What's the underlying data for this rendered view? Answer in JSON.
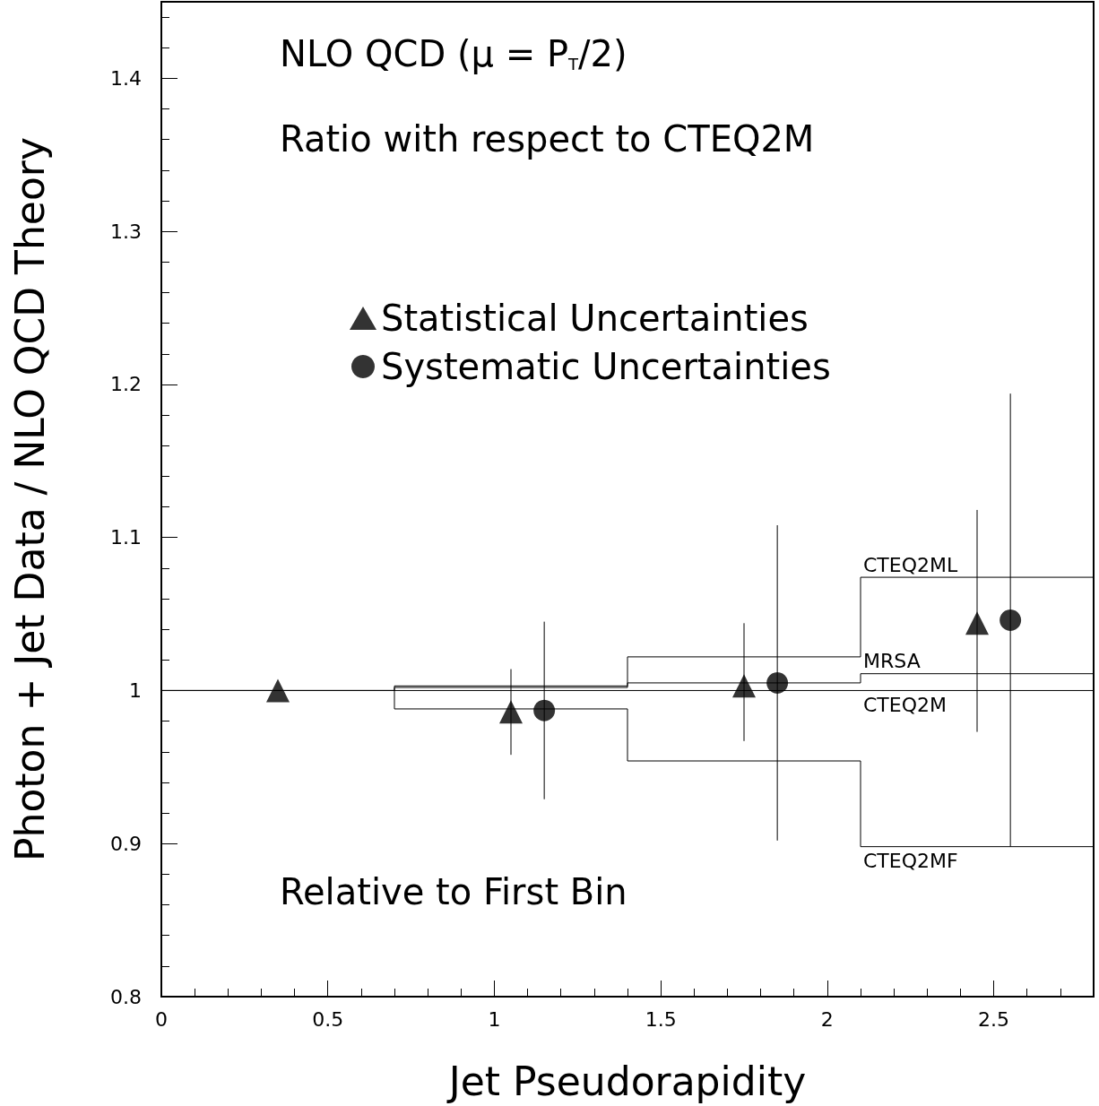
{
  "chart_data": {
    "type": "scatter",
    "xlabel": "Jet Pseudorapidity",
    "ylabel": "Photon + Jet Data / NLO QCD Theory",
    "annotations": [
      "NLO QCD (μ = P$_{T}$/2)",
      "Ratio with respect to CTEQ2M",
      "Relative to First Bin"
    ],
    "xlim": [
      0,
      2.8
    ],
    "xticks": [
      0,
      0.5,
      1,
      1.5,
      2,
      2.5
    ],
    "ylim": [
      0.8,
      1.45
    ],
    "yticks": [
      0.8,
      0.9,
      1,
      1.1,
      1.2,
      1.3,
      1.4
    ],
    "grid": false,
    "legend": "top left",
    "series": [
      {
        "name": "Statistical Uncertainties",
        "marker": "triangle",
        "color": "#000000",
        "x": [
          0.35,
          1.05,
          1.75,
          2.45
        ],
        "values": [
          1.0,
          0.986,
          1.003,
          1.044
        ],
        "errors": [
          null,
          [
            0.958,
            1.014
          ],
          [
            0.967,
            1.044
          ],
          [
            0.973,
            1.118
          ]
        ]
      },
      {
        "name": "Systematic Uncertainties",
        "marker": "circle",
        "color": "#000000",
        "x": [
          1.15,
          1.85,
          2.55
        ],
        "values": [
          0.987,
          1.005,
          1.046
        ],
        "errors": [
          [
            0.929,
            1.045
          ],
          [
            0.902,
            1.108
          ],
          [
            0.898,
            1.194
          ]
        ]
      },
      {
        "name": "CTEQ2ML",
        "type": "step",
        "marker": "none",
        "color": "#000000",
        "x": [
          0,
          0.7,
          1.4,
          2.1,
          2.8
        ],
        "values": [
          1.0,
          1.003,
          1.022,
          1.074,
          1.074
        ]
      },
      {
        "name": "MRSA",
        "type": "step",
        "marker": "none",
        "color": "#000000",
        "x": [
          0,
          0.7,
          1.4,
          2.1,
          2.8
        ],
        "values": [
          1.0,
          1.002,
          1.005,
          1.011,
          1.011
        ]
      },
      {
        "name": "CTEQ2M",
        "type": "step",
        "marker": "none",
        "color": "#000000",
        "x": [
          0,
          0.7,
          1.4,
          2.1,
          2.8
        ],
        "values": [
          1.0,
          1.0,
          1.0,
          1.0,
          1.0
        ]
      },
      {
        "name": "CTEQ2MF",
        "type": "step",
        "marker": "none",
        "color": "#000000",
        "x": [
          0,
          0.7,
          1.4,
          2.1,
          2.8
        ],
        "values": [
          1.0,
          0.988,
          0.954,
          0.898,
          0.898
        ]
      }
    ]
  }
}
